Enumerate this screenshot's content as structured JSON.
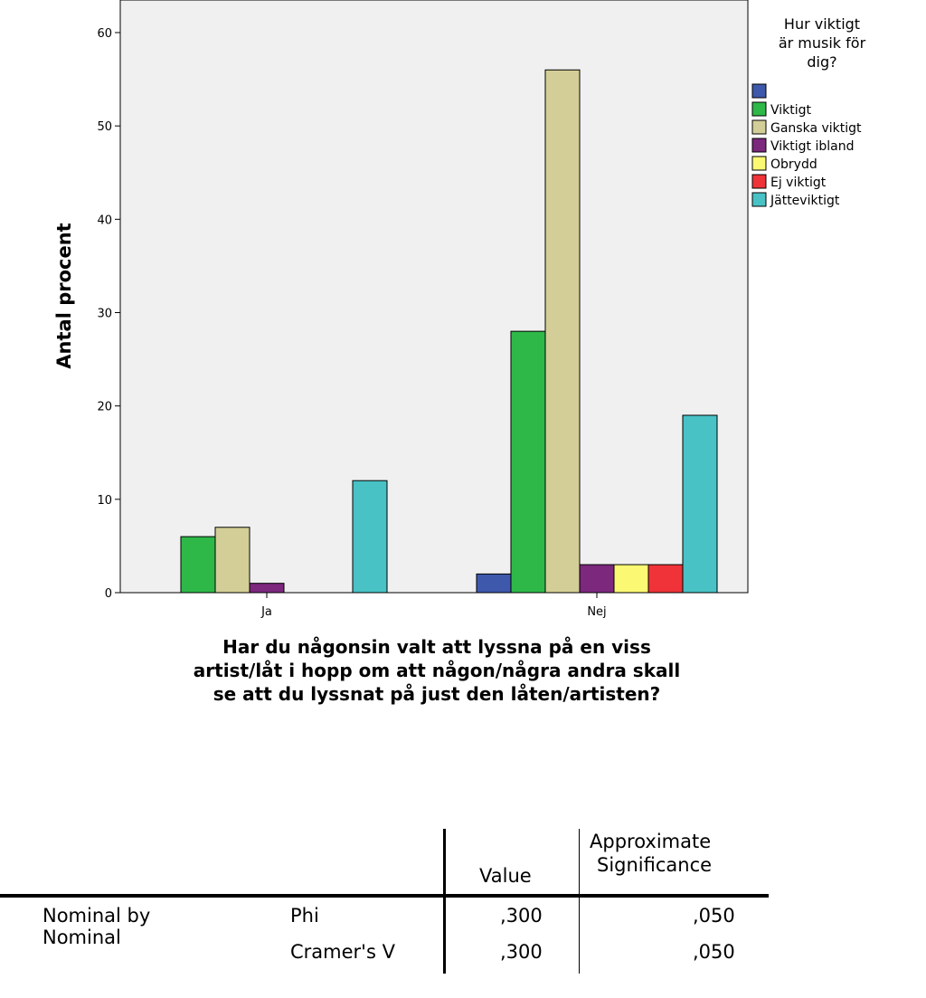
{
  "chart_data": {
    "type": "bar",
    "title": "",
    "xlabel_lines": [
      "Har du någonsin valt att lyssna på en viss",
      "artist/låt i hopp om att någon/några andra skall",
      "se att du lyssnat på just den låten/artisten?"
    ],
    "ylabel": "Antal procent",
    "ylim": [
      0,
      60
    ],
    "yticks": [
      0,
      10,
      20,
      30,
      40,
      50,
      60
    ],
    "categories": [
      "Ja",
      "Nej"
    ],
    "legend_title_lines": [
      "Hur viktigt",
      "är musik för",
      "dig?"
    ],
    "legend_position": "right",
    "grid": false,
    "background": "#f0f0f0",
    "series": [
      {
        "name": "",
        "color": "#3e58ac",
        "values": [
          0,
          2
        ]
      },
      {
        "name": "Viktigt",
        "color": "#2eb848",
        "values": [
          6,
          28
        ]
      },
      {
        "name": "Ganska viktigt",
        "color": "#d3ce97",
        "values": [
          7,
          56
        ]
      },
      {
        "name": "Viktigt ibland",
        "color": "#7c287d",
        "values": [
          1,
          3
        ]
      },
      {
        "name": "Obrydd",
        "color": "#fbf873",
        "values": [
          0,
          3
        ]
      },
      {
        "name": "Ej viktigt",
        "color": "#ef3338",
        "values": [
          0,
          3
        ]
      },
      {
        "name": "Jätteviktigt",
        "color": "#48c2c5",
        "values": [
          12,
          19
        ]
      }
    ]
  },
  "table": {
    "col_value": "Value",
    "col_sig_line1": "Approximate",
    "col_sig_line2": "Significance",
    "group_line1": "Nominal by",
    "group_line2": "Nominal",
    "rows": [
      {
        "stat": "Phi",
        "value": ",300",
        "sig": ",050"
      },
      {
        "stat": "Cramer's V",
        "value": ",300",
        "sig": ",050"
      }
    ]
  }
}
